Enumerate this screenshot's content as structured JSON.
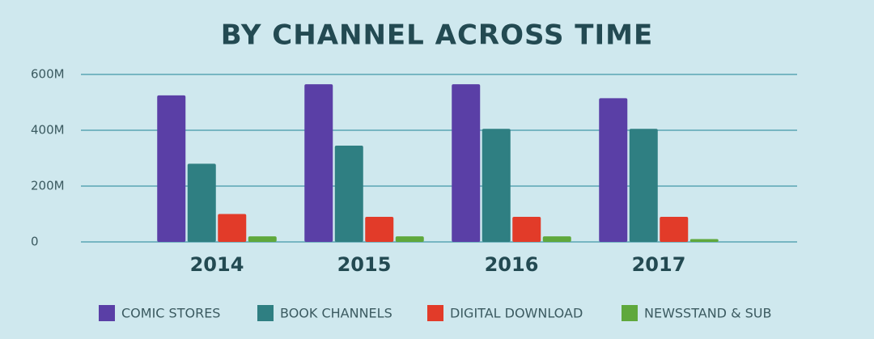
{
  "chart_data": {
    "type": "bar",
    "title": "BY CHANNEL ACROSS TIME",
    "categories": [
      "2014",
      "2015",
      "2016",
      "2017"
    ],
    "series": [
      {
        "name": "COMIC STORES",
        "color": "#5a3fa6",
        "values": [
          525,
          565,
          565,
          515
        ]
      },
      {
        "name": "BOOK CHANNELS",
        "color": "#2f7f82",
        "values": [
          280,
          345,
          405,
          405
        ]
      },
      {
        "name": "DIGITAL DOWNLOAD",
        "color": "#e23b29",
        "values": [
          100,
          90,
          90,
          90
        ]
      },
      {
        "name": "NEWSSTAND & SUB",
        "color": "#5fa83c",
        "values": [
          20,
          20,
          20,
          10
        ]
      }
    ],
    "ylim": [
      0,
      600
    ],
    "yticks": [
      0,
      {
        "value": 200,
        "label": "200M"
      },
      {
        "value": 400,
        "label": "400M"
      },
      {
        "value": 600,
        "label": "600M"
      }
    ],
    "grid": true
  }
}
